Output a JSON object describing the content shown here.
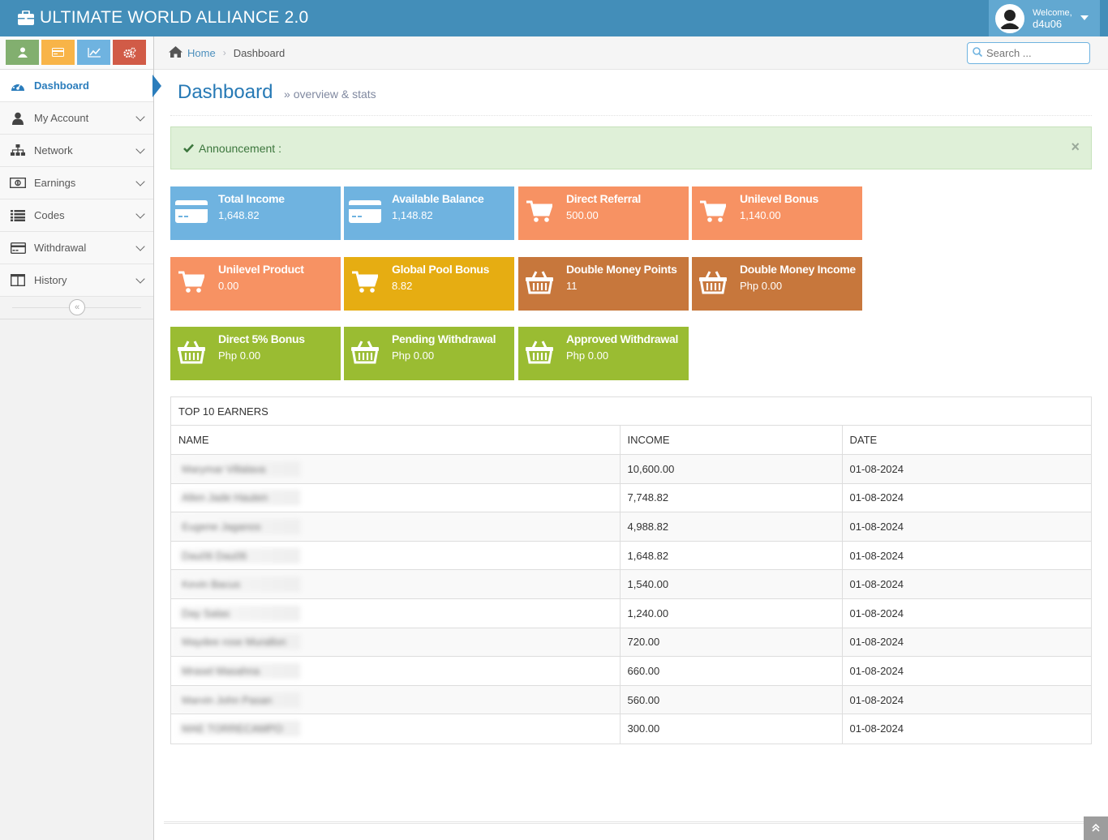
{
  "navbar": {
    "brand": "ULTIMATE WORLD ALLIANCE 2.0",
    "welcome": "Welcome,",
    "username": "d4u06"
  },
  "shortcuts": [
    {
      "icon": "user-icon",
      "color": "#82af6f"
    },
    {
      "icon": "card-icon",
      "color": "#f8b448"
    },
    {
      "icon": "chart-icon",
      "color": "#6fb3e0"
    },
    {
      "icon": "cogs-icon",
      "color": "#d15b47"
    }
  ],
  "sidebar": {
    "items": [
      {
        "label": "Dashboard",
        "icon": "dashboard-icon"
      },
      {
        "label": "My Account",
        "icon": "user-icon"
      },
      {
        "label": "Network",
        "icon": "sitemap-icon"
      },
      {
        "label": "Earnings",
        "icon": "money-icon"
      },
      {
        "label": "Codes",
        "icon": "list-icon"
      },
      {
        "label": "Withdrawal",
        "icon": "credit-card-icon"
      },
      {
        "label": "History",
        "icon": "columns-icon"
      }
    ]
  },
  "breadcrumb": {
    "home": "Home",
    "current": "Dashboard"
  },
  "search": {
    "placeholder": "Search ..."
  },
  "header": {
    "title": "Dashboard",
    "subtitle": "overview & stats"
  },
  "alert": {
    "text": "Announcement :"
  },
  "infoboxes": [
    {
      "title": "Total Income",
      "value": "1,648.82",
      "color": "blue",
      "icon": "credit-card-icon"
    },
    {
      "title": "Available Balance",
      "value": "1,148.82",
      "color": "blue",
      "icon": "credit-card-icon"
    },
    {
      "title": "Direct Referral",
      "value": "500.00",
      "color": "orange",
      "icon": "shopping-cart-icon"
    },
    {
      "title": "Unilevel Bonus",
      "value": "1,140.00",
      "color": "orange",
      "icon": "shopping-cart-icon"
    },
    {
      "title": "Unilevel Product",
      "value": "0.00",
      "color": "orange",
      "icon": "shopping-cart-icon"
    },
    {
      "title": "Global Pool Bonus",
      "value": "8.82",
      "color": "yellow",
      "icon": "shopping-cart-icon"
    },
    {
      "title": "Double Money Points",
      "value": "11",
      "color": "brown",
      "icon": "basket-icon"
    },
    {
      "title": "Double Money Income",
      "value": "Php 0.00",
      "color": "brown",
      "icon": "basket-icon"
    },
    {
      "title": "Direct 5% Bonus",
      "value": "Php 0.00",
      "color": "green",
      "icon": "basket-icon"
    },
    {
      "title": "Pending Withdrawal",
      "value": "Php 0.00",
      "color": "green",
      "icon": "basket-icon"
    },
    {
      "title": "Approved Withdrawal",
      "value": "Php 0.00",
      "color": "green",
      "icon": "basket-icon"
    }
  ],
  "earners": {
    "title": "TOP 10 EARNERS",
    "columns": [
      "NAME",
      "INCOME",
      "DATE"
    ],
    "rows": [
      {
        "name": "Marymar Villalava",
        "income": "10,600.00",
        "date": "01-08-2024"
      },
      {
        "name": "Allen Jade Hauten",
        "income": "7,748.82",
        "date": "01-08-2024"
      },
      {
        "name": "Eugene Jaganos",
        "income": "4,988.82",
        "date": "01-08-2024"
      },
      {
        "name": "Dau06 Dau06",
        "income": "1,648.82",
        "date": "01-08-2024"
      },
      {
        "name": "Kevin Bacus",
        "income": "1,540.00",
        "date": "01-08-2024"
      },
      {
        "name": "Day Salas",
        "income": "1,240.00",
        "date": "01-08-2024"
      },
      {
        "name": "Maydee rose Murallon",
        "income": "720.00",
        "date": "01-08-2024"
      },
      {
        "name": "Mrasel Masahna",
        "income": "660.00",
        "date": "01-08-2024"
      },
      {
        "name": "Marvin John Pasan",
        "income": "560.00",
        "date": "01-08-2024"
      },
      {
        "name": "MAE TORRECAMPO",
        "income": "300.00",
        "date": "01-08-2024"
      }
    ]
  }
}
